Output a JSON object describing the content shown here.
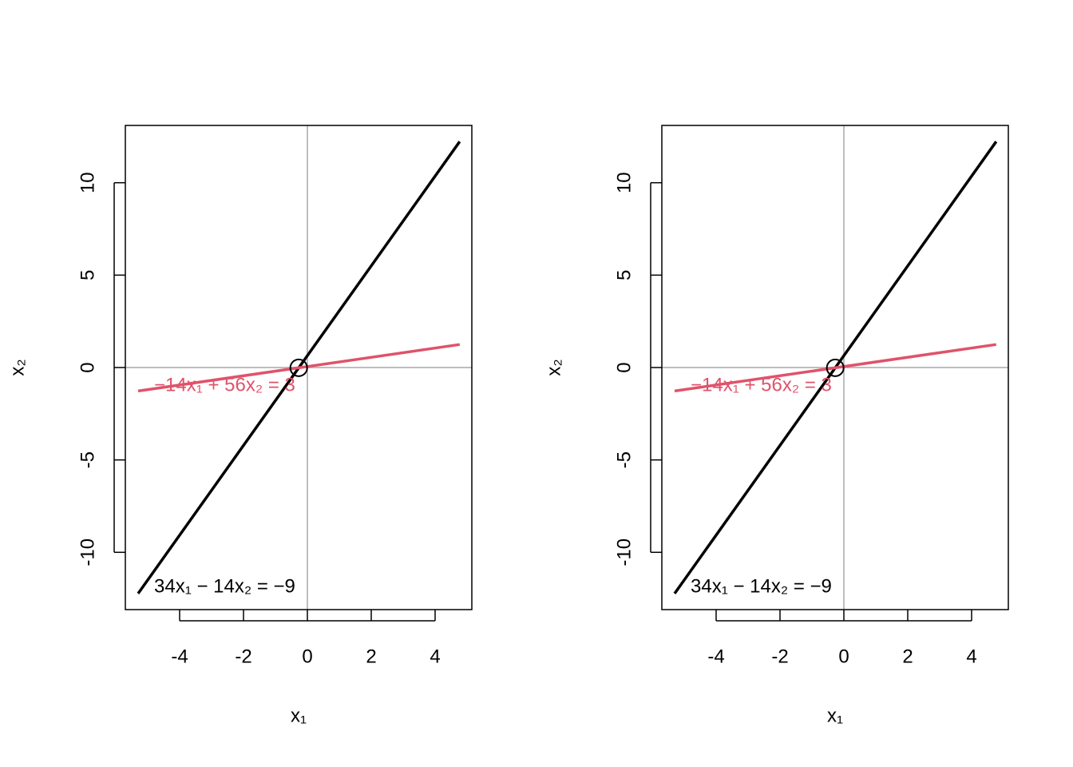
{
  "chart_data": [
    {
      "type": "line",
      "xlabel": "x₁",
      "ylabel": "x₂",
      "xlim": [
        -5.7,
        5.15
      ],
      "ylim": [
        -13.1,
        13.1
      ],
      "xticks": [
        -4,
        -2,
        0,
        2,
        4
      ],
      "yticks": [
        -10,
        -5,
        0,
        5,
        10
      ],
      "zero_lines": true,
      "series": [
        {
          "name": "34x₁ − 14x₂ = −9",
          "color": "#000000",
          "x": [
            -5.3,
            4.77
          ],
          "values": [
            -12.229,
            12.227
          ]
        },
        {
          "name": "−14x₁ + 56x₂ = 3",
          "color": "#df536b",
          "x": [
            -5.3,
            4.77
          ],
          "values": [
            -1.271,
            1.246
          ]
        }
      ],
      "point": {
        "x": -0.2705,
        "y": -0.014
      }
    },
    {
      "type": "line",
      "xlabel": "x₁",
      "ylabel": "x₂",
      "xlim": [
        -5.7,
        5.15
      ],
      "ylim": [
        -13.1,
        13.1
      ],
      "xticks": [
        -4,
        -2,
        0,
        2,
        4
      ],
      "yticks": [
        -10,
        -5,
        0,
        5,
        10
      ],
      "zero_lines": true,
      "series": [
        {
          "name": "34x₁ − 14x₂ = −9",
          "color": "#000000",
          "x": [
            -5.3,
            4.77
          ],
          "values": [
            -12.229,
            12.227
          ]
        },
        {
          "name": "−14x₁ + 56x₂ = 3",
          "color": "#df536b",
          "x": [
            -5.3,
            4.77
          ],
          "values": [
            -1.271,
            1.246
          ]
        }
      ],
      "point": {
        "x": -0.2705,
        "y": -0.014
      }
    }
  ]
}
